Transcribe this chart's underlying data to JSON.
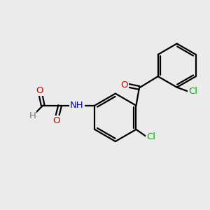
{
  "bg_color": "#ebebeb",
  "atom_colors": {
    "C": "#000000",
    "H": "#7a7a7a",
    "N": "#0000cc",
    "O": "#cc0000",
    "Cl": "#00aa00"
  },
  "bond_color": "#000000",
  "figsize": [
    3.0,
    3.0
  ],
  "dpi": 100
}
